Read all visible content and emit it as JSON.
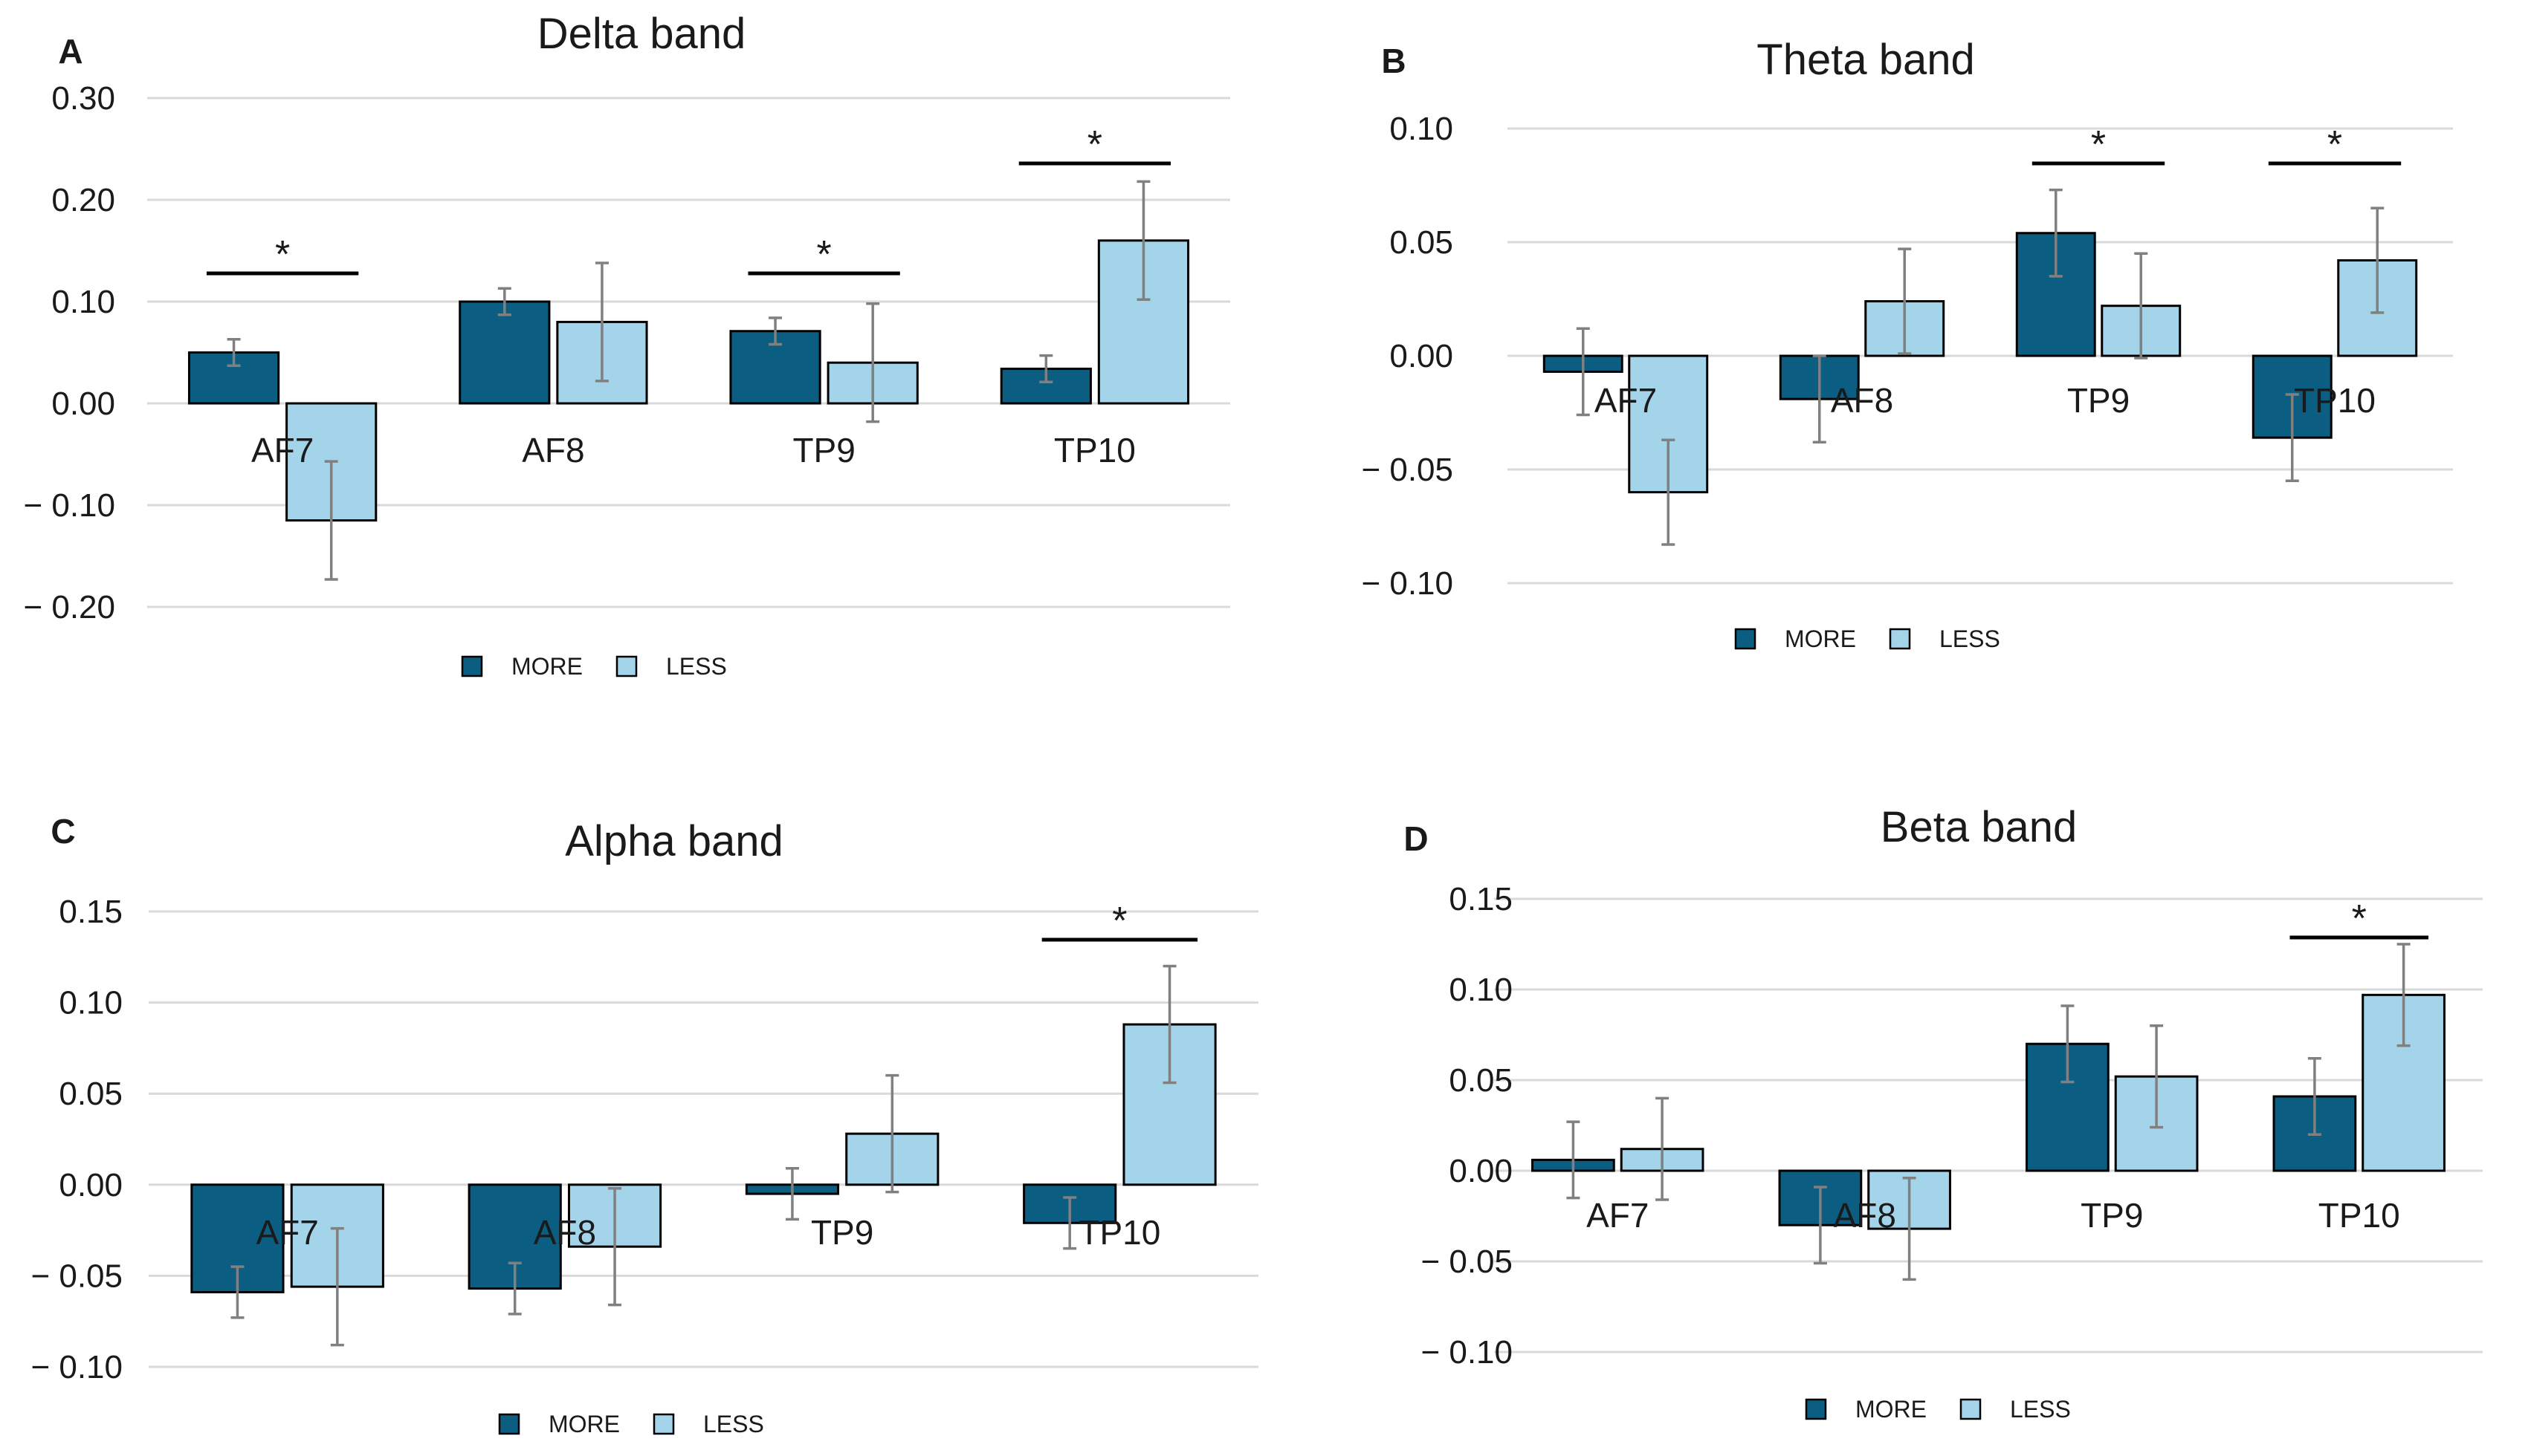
{
  "colors": {
    "more": "#0b5e82",
    "less": "#a3d4ea",
    "bar_edge": "#000000",
    "grid": "#d9d9d9",
    "errorbar": "#808080",
    "text": "#1a1a1a"
  },
  "chart_data": [
    {
      "panel": "A",
      "type": "bar",
      "title": "Delta band",
      "categories": [
        "AF7",
        "AF8",
        "TP9",
        "TP10"
      ],
      "series": [
        {
          "name": "MORE",
          "values": [
            0.05,
            0.1,
            0.071,
            0.034
          ],
          "errors": [
            0.013,
            0.013,
            0.013,
            0.013
          ]
        },
        {
          "name": "LESS",
          "values": [
            -0.115,
            0.08,
            0.04,
            0.16
          ],
          "errors": [
            0.058,
            0.058,
            0.058,
            0.058
          ]
        }
      ],
      "yticks": [
        0.3,
        0.2,
        0.1,
        0.0,
        -0.1,
        -0.2
      ],
      "ytick_labels": [
        "0.30",
        "0.20",
        "0.10",
        "0.00",
        "− 0.10",
        "− 0.20"
      ],
      "ylim": [
        -0.2,
        0.3
      ],
      "significance": [
        {
          "category": "AF7",
          "label": "*"
        },
        {
          "category": "TP9",
          "label": "*"
        },
        {
          "category": "TP10",
          "label": "*"
        }
      ],
      "legend": [
        "MORE",
        "LESS"
      ]
    },
    {
      "panel": "B",
      "type": "bar",
      "title": "Theta band",
      "categories": [
        "AF7",
        "AF8",
        "TP9",
        "TP10"
      ],
      "series": [
        {
          "name": "MORE",
          "values": [
            -0.007,
            -0.019,
            0.054,
            -0.036
          ],
          "errors": [
            0.019,
            0.019,
            0.019,
            0.019
          ]
        },
        {
          "name": "LESS",
          "values": [
            -0.06,
            0.024,
            0.022,
            0.042
          ],
          "errors": [
            0.023,
            0.023,
            0.023,
            0.023
          ]
        }
      ],
      "yticks": [
        0.1,
        0.05,
        0.0,
        -0.05,
        -0.1
      ],
      "ytick_labels": [
        "0.10",
        "0.05",
        "0.00",
        "− 0.05",
        "− 0.10"
      ],
      "ylim": [
        -0.1,
        0.1
      ],
      "significance": [
        {
          "category": "TP9",
          "label": "*"
        },
        {
          "category": "TP10",
          "label": "*"
        }
      ],
      "legend": [
        "MORE",
        "LESS"
      ]
    },
    {
      "panel": "C",
      "type": "bar",
      "title": "Alpha band",
      "categories": [
        "AF7",
        "AF8",
        "TP9",
        "TP10"
      ],
      "series": [
        {
          "name": "MORE",
          "values": [
            -0.059,
            -0.057,
            -0.005,
            -0.021
          ],
          "errors": [
            0.014,
            0.014,
            0.014,
            0.014
          ]
        },
        {
          "name": "LESS",
          "values": [
            -0.056,
            -0.034,
            0.028,
            0.088
          ],
          "errors": [
            0.032,
            0.032,
            0.032,
            0.032
          ]
        }
      ],
      "yticks": [
        0.15,
        0.1,
        0.05,
        0.0,
        -0.05,
        -0.1
      ],
      "ytick_labels": [
        "0.15",
        "0.10",
        "0.05",
        "0.00",
        "− 0.05",
        "− 0.10"
      ],
      "ylim": [
        -0.1,
        0.15
      ],
      "significance": [
        {
          "category": "TP10",
          "label": "*"
        }
      ],
      "legend": [
        "MORE",
        "LESS"
      ]
    },
    {
      "panel": "D",
      "type": "bar",
      "title": "Beta band",
      "categories": [
        "AF7",
        "AF8",
        "TP9",
        "TP10"
      ],
      "series": [
        {
          "name": "MORE",
          "values": [
            0.006,
            -0.03,
            0.07,
            0.041
          ],
          "errors": [
            0.021,
            0.021,
            0.021,
            0.021
          ]
        },
        {
          "name": "LESS",
          "values": [
            0.012,
            -0.032,
            0.052,
            0.097
          ],
          "errors": [
            0.028,
            0.028,
            0.028,
            0.028
          ]
        }
      ],
      "yticks": [
        0.15,
        0.1,
        0.05,
        0.0,
        -0.05,
        -0.1
      ],
      "ytick_labels": [
        "0.15",
        "0.10",
        "0.05",
        "0.00",
        "− 0.05",
        "− 0.10"
      ],
      "ylim": [
        -0.1,
        0.15
      ],
      "significance": [
        {
          "category": "TP10",
          "label": "*"
        }
      ],
      "legend": [
        "MORE",
        "LESS"
      ]
    }
  ]
}
